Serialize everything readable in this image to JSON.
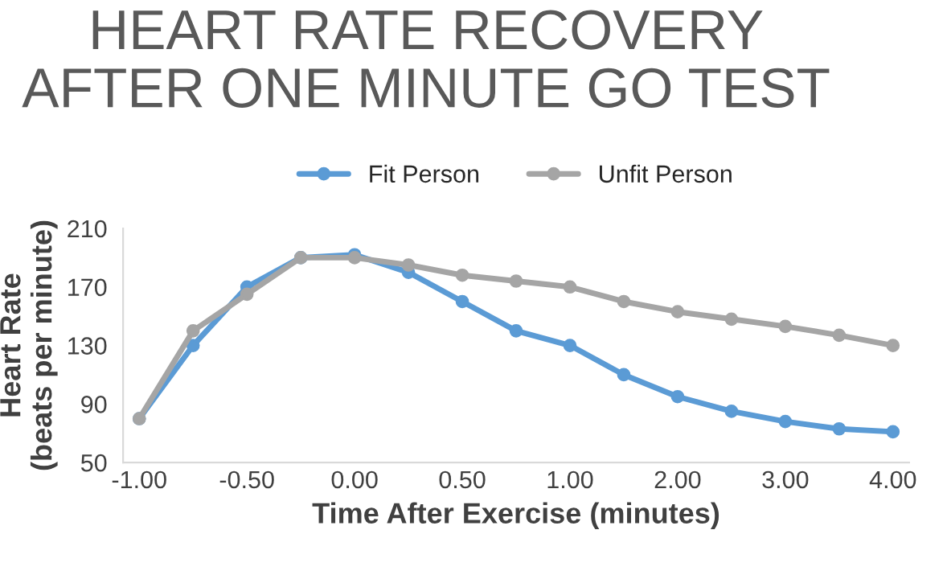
{
  "chart_data": {
    "type": "line",
    "title": "HEART RATE RECOVERY\nAFTER ONE MINUTE GO TEST",
    "xlabel": "Time After Exercise (minutes)",
    "ylabel": "Heart Rate\n(beats per minute)",
    "categories": [
      "-1.00",
      null,
      "-0.50",
      null,
      "0.00",
      null,
      "0.50",
      null,
      "1.00",
      null,
      "2.00",
      null,
      "3.00",
      null,
      "4.00"
    ],
    "series": [
      {
        "name": "Fit Person",
        "color": "#5b9bd5",
        "values": [
          80,
          130,
          170,
          190,
          192,
          180,
          160,
          140,
          130,
          110,
          95,
          85,
          78,
          73,
          71
        ]
      },
      {
        "name": "Unfit Person",
        "color": "#a5a5a5",
        "values": [
          80,
          140,
          165,
          190,
          190,
          185,
          178,
          174,
          170,
          160,
          153,
          148,
          143,
          137,
          130
        ]
      }
    ],
    "ylim": [
      50,
      210
    ],
    "yticks": [
      50,
      90,
      130,
      170,
      210
    ],
    "grid": false,
    "legend": "top",
    "marker": "circle",
    "line_style": "solid"
  }
}
